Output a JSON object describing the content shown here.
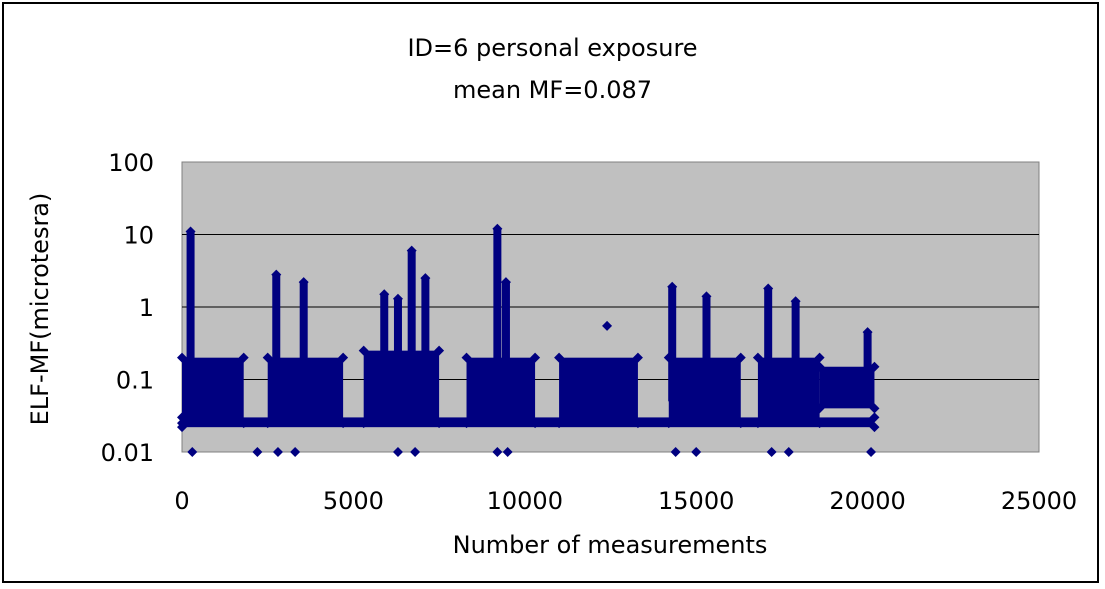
{
  "chart_data": {
    "type": "scatter",
    "title": "ID=6 personal exposure",
    "subtitle": "mean MF=0.087",
    "xlabel": "Number of measurements",
    "ylabel": "ELF-MF(microtesra)",
    "xlim": [
      0,
      25000
    ],
    "ylim": [
      0.01,
      100
    ],
    "yscale": "log",
    "grid": true,
    "legend": "none",
    "x_ticks": [
      "0",
      "5000",
      "10000",
      "15000",
      "20000",
      "25000"
    ],
    "y_ticks": [
      "0.01",
      "0.1",
      "1",
      "10",
      "100"
    ],
    "colors": {
      "series": "#000080",
      "plot_bg": "#c0c0c0",
      "grid": "#000000"
    },
    "series": [
      {
        "name": "",
        "bands": [
          {
            "x": [
              0,
              1800
            ],
            "y": [
              0.025,
              0.2
            ]
          },
          {
            "x": [
              2500,
              4700
            ],
            "y": [
              0.025,
              0.2
            ]
          },
          {
            "x": [
              5300,
              7500
            ],
            "y": [
              0.025,
              0.25
            ]
          },
          {
            "x": [
              8300,
              10300
            ],
            "y": [
              0.025,
              0.2
            ]
          },
          {
            "x": [
              11000,
              13300
            ],
            "y": [
              0.025,
              0.2
            ]
          },
          {
            "x": [
              14200,
              16300
            ],
            "y": [
              0.025,
              0.2
            ]
          },
          {
            "x": [
              16800,
              18600
            ],
            "y": [
              0.025,
              0.2
            ]
          },
          {
            "x": [
              18600,
              20200
            ],
            "y": [
              0.04,
              0.15
            ]
          },
          {
            "x": [
              0,
              20200
            ],
            "y": [
              0.022,
              0.03
            ]
          }
        ],
        "spikes": [
          {
            "x": 250,
            "y": [
              0.05,
              11
            ]
          },
          {
            "x": 2750,
            "y": [
              0.05,
              2.8
            ]
          },
          {
            "x": 3550,
            "y": [
              0.05,
              2.2
            ]
          },
          {
            "x": 5900,
            "y": [
              0.05,
              1.5
            ]
          },
          {
            "x": 6300,
            "y": [
              0.05,
              1.3
            ]
          },
          {
            "x": 6700,
            "y": [
              0.05,
              6
            ]
          },
          {
            "x": 7100,
            "y": [
              0.05,
              2.5
            ]
          },
          {
            "x": 9200,
            "y": [
              0.05,
              12
            ]
          },
          {
            "x": 9450,
            "y": [
              0.05,
              2.2
            ]
          },
          {
            "x": 14300,
            "y": [
              0.05,
              1.9
            ]
          },
          {
            "x": 15300,
            "y": [
              0.05,
              1.4
            ]
          },
          {
            "x": 17100,
            "y": [
              0.05,
              1.8
            ]
          },
          {
            "x": 17900,
            "y": [
              0.05,
              1.2
            ]
          },
          {
            "x": 20000,
            "y": [
              0.05,
              0.45
            ]
          }
        ],
        "points": [
          {
            "x": 12400,
            "y": 0.55
          },
          {
            "x": 300,
            "y": 0.01
          },
          {
            "x": 2200,
            "y": 0.01
          },
          {
            "x": 2800,
            "y": 0.01
          },
          {
            "x": 3300,
            "y": 0.01
          },
          {
            "x": 6300,
            "y": 0.01
          },
          {
            "x": 6800,
            "y": 0.01
          },
          {
            "x": 9200,
            "y": 0.01
          },
          {
            "x": 9500,
            "y": 0.01
          },
          {
            "x": 14400,
            "y": 0.01
          },
          {
            "x": 15000,
            "y": 0.01
          },
          {
            "x": 17200,
            "y": 0.01
          },
          {
            "x": 17700,
            "y": 0.01
          },
          {
            "x": 20100,
            "y": 0.01
          }
        ]
      }
    ]
  }
}
